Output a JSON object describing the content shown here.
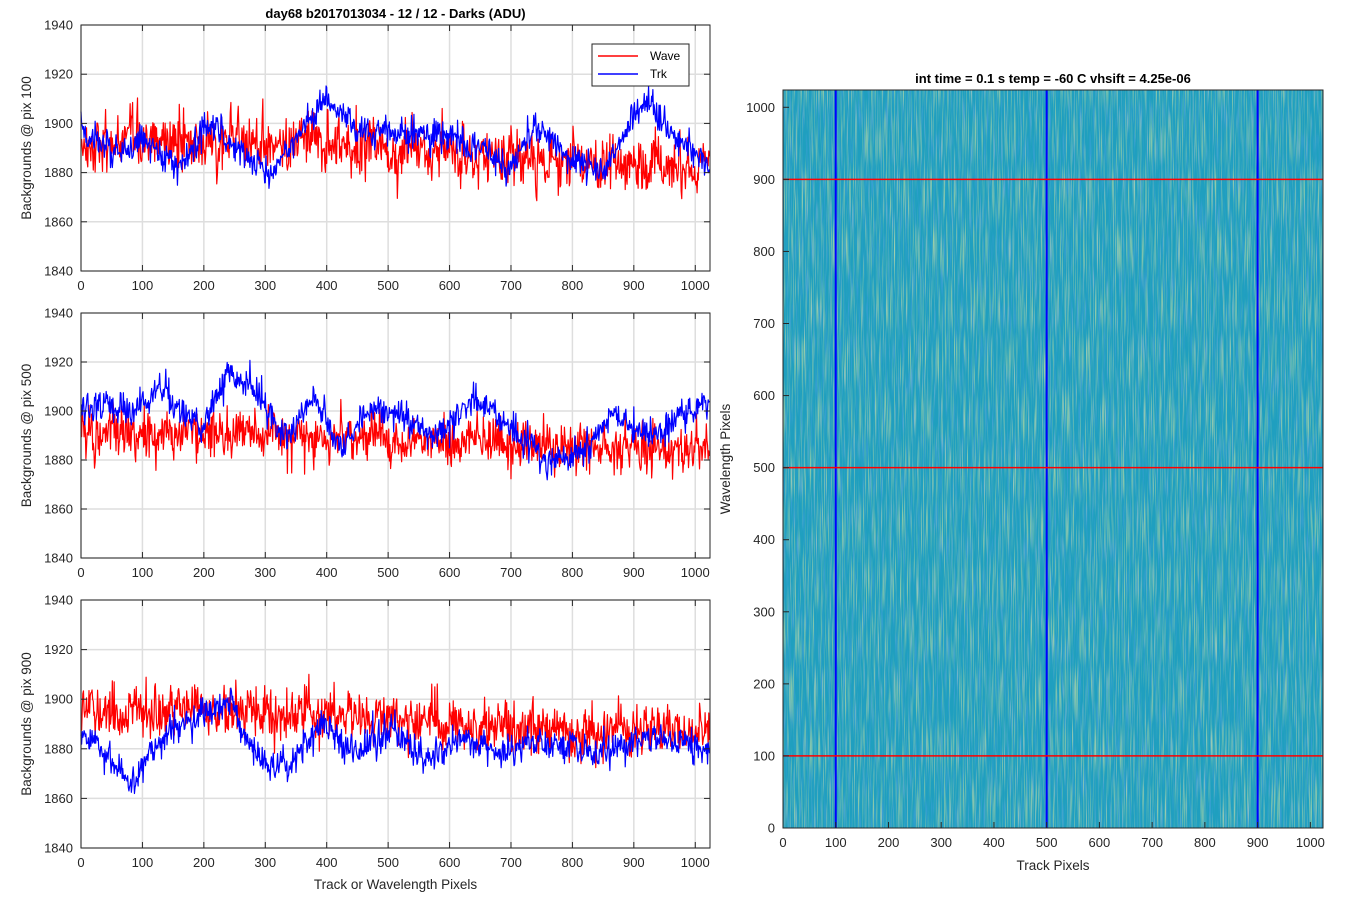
{
  "chart_data": [
    {
      "type": "line",
      "title": "day68 b2017013034 - 12 / 12 - Darks (ADU)",
      "xlabel": "",
      "ylabel": "Backgrounds @ pix 100",
      "xlim": [
        0,
        1024
      ],
      "ylim": [
        1840,
        1940
      ],
      "xticks": [
        "0",
        "100",
        "200",
        "300",
        "400",
        "500",
        "600",
        "700",
        "800",
        "900",
        "1000"
      ],
      "yticks": [
        "1840",
        "1860",
        "1880",
        "1900",
        "1920",
        "1940"
      ],
      "grid": true,
      "legend": "top-right",
      "series": [
        {
          "name": "Wave",
          "color": "#ff0000",
          "mean": 1890,
          "noise": 9,
          "trend": [
            [
              0,
              1891
            ],
            [
              100,
              1892
            ],
            [
              200,
              1893
            ],
            [
              300,
              1893
            ],
            [
              400,
              1892
            ],
            [
              500,
              1890
            ],
            [
              600,
              1887
            ],
            [
              700,
              1885
            ],
            [
              800,
              1884
            ],
            [
              900,
              1883
            ],
            [
              1024,
              1882
            ]
          ]
        },
        {
          "name": "Trk",
          "color": "#0000ff",
          "mean": 1892,
          "noise": 5,
          "trend": [
            [
              0,
              1898
            ],
            [
              50,
              1888
            ],
            [
              100,
              1892
            ],
            [
              160,
              1882
            ],
            [
              210,
              1902
            ],
            [
              250,
              1890
            ],
            [
              310,
              1878
            ],
            [
              350,
              1895
            ],
            [
              400,
              1910
            ],
            [
              450,
              1897
            ],
            [
              500,
              1896
            ],
            [
              550,
              1895
            ],
            [
              600,
              1895
            ],
            [
              650,
              1889
            ],
            [
              700,
              1881
            ],
            [
              740,
              1900
            ],
            [
              800,
              1886
            ],
            [
              850,
              1880
            ],
            [
              920,
              1910
            ],
            [
              960,
              1895
            ],
            [
              1024,
              1884
            ]
          ]
        }
      ]
    },
    {
      "type": "line",
      "xlabel": "",
      "ylabel": "Backgrounds @ pix 500",
      "xlim": [
        0,
        1024
      ],
      "ylim": [
        1840,
        1940
      ],
      "xticks": [
        "0",
        "100",
        "200",
        "300",
        "400",
        "500",
        "600",
        "700",
        "800",
        "900",
        "1000"
      ],
      "yticks": [
        "1840",
        "1860",
        "1880",
        "1900",
        "1920",
        "1940"
      ],
      "grid": true,
      "series": [
        {
          "name": "Wave",
          "color": "#ff0000",
          "mean": 1890,
          "noise": 8,
          "trend": [
            [
              0,
              1890
            ],
            [
              100,
              1891
            ],
            [
              200,
              1892
            ],
            [
              300,
              1890
            ],
            [
              400,
              1889
            ],
            [
              500,
              1888
            ],
            [
              600,
              1888
            ],
            [
              700,
              1887
            ],
            [
              800,
              1885
            ],
            [
              900,
              1885
            ],
            [
              1024,
              1884
            ]
          ]
        },
        {
          "name": "Trk",
          "color": "#0000ff",
          "mean": 1895,
          "noise": 5,
          "trend": [
            [
              0,
              1902
            ],
            [
              80,
              1900
            ],
            [
              130,
              1908
            ],
            [
              200,
              1893
            ],
            [
              240,
              1915
            ],
            [
              290,
              1906
            ],
            [
              330,
              1890
            ],
            [
              380,
              1905
            ],
            [
              420,
              1885
            ],
            [
              480,
              1902
            ],
            [
              530,
              1896
            ],
            [
              580,
              1890
            ],
            [
              640,
              1905
            ],
            [
              700,
              1895
            ],
            [
              760,
              1880
            ],
            [
              820,
              1884
            ],
            [
              860,
              1898
            ],
            [
              930,
              1890
            ],
            [
              1024,
              1906
            ]
          ]
        }
      ]
    },
    {
      "type": "line",
      "xlabel": "Track or Wavelength Pixels",
      "ylabel": "Backgrounds @ pix 900",
      "xlim": [
        0,
        1024
      ],
      "ylim": [
        1840,
        1940
      ],
      "xticks": [
        "0",
        "100",
        "200",
        "300",
        "400",
        "500",
        "600",
        "700",
        "800",
        "900",
        "1000"
      ],
      "yticks": [
        "1840",
        "1860",
        "1880",
        "1900",
        "1920",
        "1940"
      ],
      "grid": true,
      "series": [
        {
          "name": "Wave",
          "color": "#ff0000",
          "mean": 1893,
          "noise": 8,
          "trend": [
            [
              0,
              1896
            ],
            [
              100,
              1894
            ],
            [
              200,
              1895
            ],
            [
              300,
              1894
            ],
            [
              400,
              1893
            ],
            [
              500,
              1892
            ],
            [
              600,
              1890
            ],
            [
              700,
              1889
            ],
            [
              800,
              1888
            ],
            [
              900,
              1888
            ],
            [
              1024,
              1887
            ]
          ]
        },
        {
          "name": "Trk",
          "color": "#0000ff",
          "mean": 1882,
          "noise": 5,
          "trend": [
            [
              0,
              1885
            ],
            [
              40,
              1878
            ],
            [
              80,
              1866
            ],
            [
              130,
              1884
            ],
            [
              200,
              1895
            ],
            [
              240,
              1900
            ],
            [
              290,
              1875
            ],
            [
              340,
              1872
            ],
            [
              390,
              1890
            ],
            [
              450,
              1878
            ],
            [
              500,
              1888
            ],
            [
              560,
              1876
            ],
            [
              620,
              1884
            ],
            [
              680,
              1878
            ],
            [
              740,
              1882
            ],
            [
              800,
              1880
            ],
            [
              860,
              1878
            ],
            [
              920,
              1885
            ],
            [
              1024,
              1880
            ]
          ]
        }
      ]
    },
    {
      "type": "heatmap",
      "title": "int time = 0.1 s   temp = -60 C   vhsift = 4.25e-06",
      "xlabel": "Track Pixels",
      "ylabel": "Wavelength Pixels",
      "xlim": [
        0,
        1024
      ],
      "ylim": [
        0,
        1024
      ],
      "xticks": [
        "0",
        "100",
        "200",
        "300",
        "400",
        "500",
        "600",
        "700",
        "800",
        "900",
        "1000"
      ],
      "yticks": [
        "0",
        "100",
        "200",
        "300",
        "400",
        "500",
        "600",
        "700",
        "800",
        "900",
        "1000"
      ],
      "colormap": "parula",
      "base_color": "#1f9fbf",
      "vertical_lines": {
        "x": [
          100,
          500,
          900
        ],
        "color": "#0000ff"
      },
      "horizontal_lines": {
        "y": [
          100,
          500,
          900
        ],
        "color": "#ff0000"
      }
    }
  ]
}
